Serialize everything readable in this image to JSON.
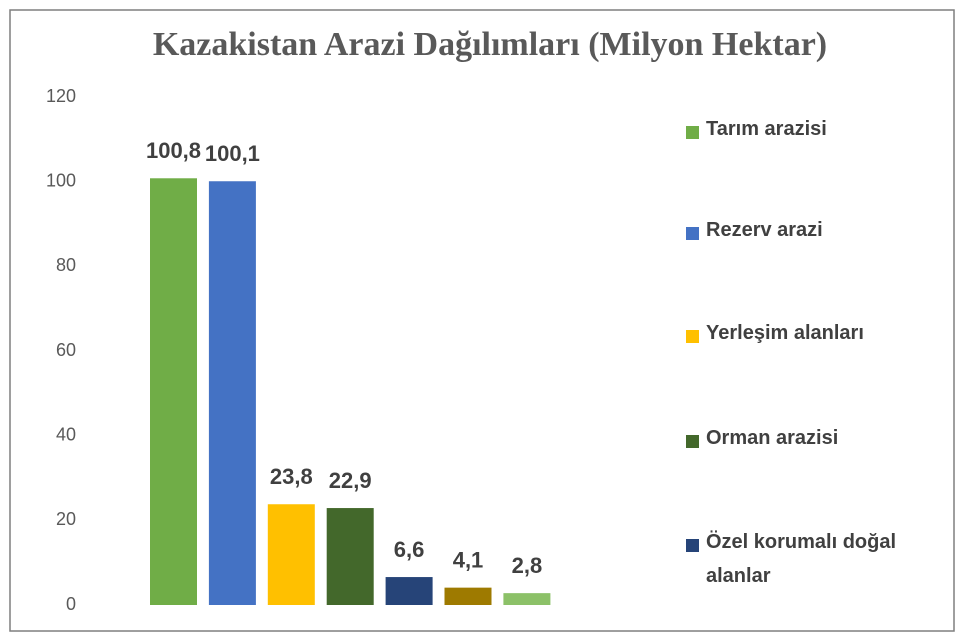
{
  "chart_data": {
    "type": "bar",
    "title": "Kazakistan Arazi Dağılımları (Milyon Hektar)",
    "series": [
      {
        "name": "Tarım arazisi",
        "color": "#70ad47",
        "values": [
          100.8
        ],
        "value_labels": [
          "100,8"
        ]
      },
      {
        "name": "Rezerv arazi",
        "color": "#4472c4",
        "values": [
          100.1
        ],
        "value_labels": [
          "100,1"
        ]
      },
      {
        "name": "Yerleşim alanları",
        "color": "#ffc000",
        "values": [
          23.8
        ],
        "value_labels": [
          "23,8"
        ]
      },
      {
        "name": "Orman arazisi",
        "color": "#43682b",
        "values": [
          22.9
        ],
        "value_labels": [
          "22,9"
        ]
      },
      {
        "name": "Özel korumalı doğal alanlar",
        "color": "#264478",
        "values": [
          6.6
        ],
        "value_labels": [
          "6,6"
        ]
      },
      {
        "color": "#9e7a00",
        "values": [
          4.1
        ],
        "value_labels": [
          "4,1"
        ]
      },
      {
        "color": "#8cc168",
        "values": [
          2.8
        ],
        "value_labels": [
          "2,8"
        ]
      }
    ],
    "ylim": [
      0,
      120
    ],
    "yticks": [
      0,
      20,
      40,
      60,
      80,
      100,
      120
    ],
    "grid": false,
    "legend": "right"
  }
}
